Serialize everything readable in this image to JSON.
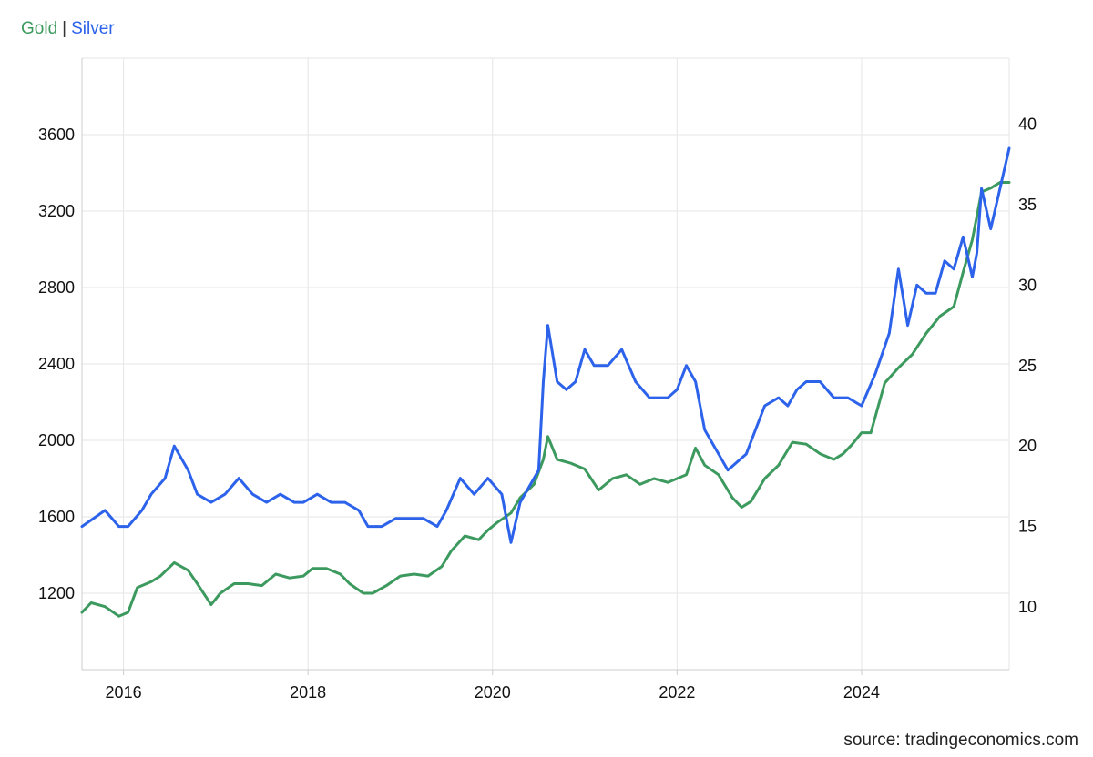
{
  "legend": {
    "separator": "|"
  },
  "source": "source: tradingeconomics.com",
  "colors": {
    "gold": "#3d9a5f",
    "silver": "#2c63ea",
    "grid": "#e6e6e6",
    "axis": "#cccccc"
  },
  "chart_data": {
    "type": "line",
    "title": "",
    "grid": true,
    "legend_position": "top-left",
    "x_range": [
      2015.55,
      2025.6
    ],
    "x_ticks": [
      "2016",
      "2018",
      "2020",
      "2022",
      "2024"
    ],
    "y_left": {
      "series": "Gold",
      "range": [
        800,
        4000
      ],
      "ticks": [
        1200,
        1600,
        2000,
        2400,
        2800,
        3200,
        3600
      ]
    },
    "y_right": {
      "series": "Silver",
      "range": [
        6.1,
        44.1
      ],
      "ticks": [
        10,
        15,
        20,
        25,
        30,
        35,
        40
      ]
    },
    "series": [
      {
        "name": "Gold",
        "axis": "left",
        "x": [
          2015.55,
          2015.65,
          2015.8,
          2015.95,
          2016.05,
          2016.15,
          2016.3,
          2016.4,
          2016.55,
          2016.7,
          2016.8,
          2016.95,
          2017.05,
          2017.2,
          2017.35,
          2017.5,
          2017.65,
          2017.8,
          2017.95,
          2018.05,
          2018.2,
          2018.35,
          2018.45,
          2018.6,
          2018.7,
          2018.85,
          2019.0,
          2019.15,
          2019.3,
          2019.45,
          2019.55,
          2019.7,
          2019.85,
          2019.95,
          2020.05,
          2020.2,
          2020.3,
          2020.45,
          2020.55,
          2020.6,
          2020.7,
          2020.85,
          2021.0,
          2021.15,
          2021.3,
          2021.45,
          2021.6,
          2021.75,
          2021.9,
          2022.0,
          2022.1,
          2022.2,
          2022.3,
          2022.45,
          2022.6,
          2022.7,
          2022.8,
          2022.95,
          2023.1,
          2023.25,
          2023.4,
          2023.55,
          2023.7,
          2023.8,
          2023.9,
          2024.0,
          2024.1,
          2024.25,
          2024.4,
          2024.55,
          2024.7,
          2024.85,
          2025.0,
          2025.1,
          2025.2,
          2025.3,
          2025.4,
          2025.5,
          2025.6
        ],
        "values": [
          1100,
          1150,
          1130,
          1080,
          1100,
          1230,
          1260,
          1290,
          1360,
          1320,
          1250,
          1140,
          1200,
          1250,
          1250,
          1240,
          1300,
          1280,
          1290,
          1330,
          1330,
          1300,
          1250,
          1200,
          1200,
          1240,
          1290,
          1300,
          1290,
          1340,
          1420,
          1500,
          1480,
          1530,
          1570,
          1620,
          1700,
          1770,
          1900,
          2020,
          1900,
          1880,
          1850,
          1740,
          1800,
          1820,
          1770,
          1800,
          1780,
          1800,
          1820,
          1960,
          1870,
          1820,
          1700,
          1650,
          1680,
          1800,
          1870,
          1990,
          1980,
          1930,
          1900,
          1930,
          1980,
          2040,
          2040,
          2300,
          2380,
          2450,
          2560,
          2650,
          2700,
          2880,
          3050,
          3300,
          3320,
          3350,
          3350
        ]
      },
      {
        "name": "Silver",
        "axis": "right",
        "x": [
          2015.55,
          2015.7,
          2015.8,
          2015.95,
          2016.05,
          2016.2,
          2016.3,
          2016.45,
          2016.55,
          2016.7,
          2016.8,
          2016.95,
          2017.1,
          2017.25,
          2017.4,
          2017.55,
          2017.7,
          2017.85,
          2017.95,
          2018.1,
          2018.25,
          2018.4,
          2018.55,
          2018.65,
          2018.8,
          2018.95,
          2019.1,
          2019.25,
          2019.4,
          2019.5,
          2019.65,
          2019.8,
          2019.95,
          2020.1,
          2020.2,
          2020.3,
          2020.4,
          2020.5,
          2020.55,
          2020.6,
          2020.7,
          2020.8,
          2020.9,
          2021.0,
          2021.1,
          2021.25,
          2021.4,
          2021.55,
          2021.7,
          2021.8,
          2021.9,
          2022.0,
          2022.1,
          2022.2,
          2022.3,
          2022.4,
          2022.55,
          2022.65,
          2022.75,
          2022.85,
          2022.95,
          2023.1,
          2023.2,
          2023.3,
          2023.4,
          2023.55,
          2023.7,
          2023.85,
          2024.0,
          2024.15,
          2024.3,
          2024.4,
          2024.5,
          2024.6,
          2024.7,
          2024.8,
          2024.9,
          2025.0,
          2025.1,
          2025.2,
          2025.25,
          2025.3,
          2025.4,
          2025.5,
          2025.6
        ],
        "values": [
          15,
          15.6,
          16,
          15,
          15,
          16,
          17,
          18,
          20,
          18.5,
          17,
          16.5,
          17,
          18,
          17,
          16.5,
          17,
          16.5,
          16.5,
          17,
          16.5,
          16.5,
          16,
          15,
          15,
          15.5,
          15.5,
          15.5,
          15,
          16,
          18,
          17,
          18,
          17,
          14,
          16.5,
          17.5,
          18.5,
          24,
          27.5,
          24,
          23.5,
          24,
          26,
          25,
          25,
          26,
          24,
          23,
          23,
          23,
          23.5,
          25,
          24,
          21,
          20,
          18.5,
          19,
          19.5,
          21,
          22.5,
          23,
          22.5,
          23.5,
          24,
          24,
          23,
          23,
          22.5,
          24.5,
          27,
          31,
          27.5,
          30,
          29.5,
          29.5,
          31.5,
          31,
          33,
          30.5,
          32,
          36,
          33.5,
          36,
          38.5
        ]
      }
    ]
  }
}
